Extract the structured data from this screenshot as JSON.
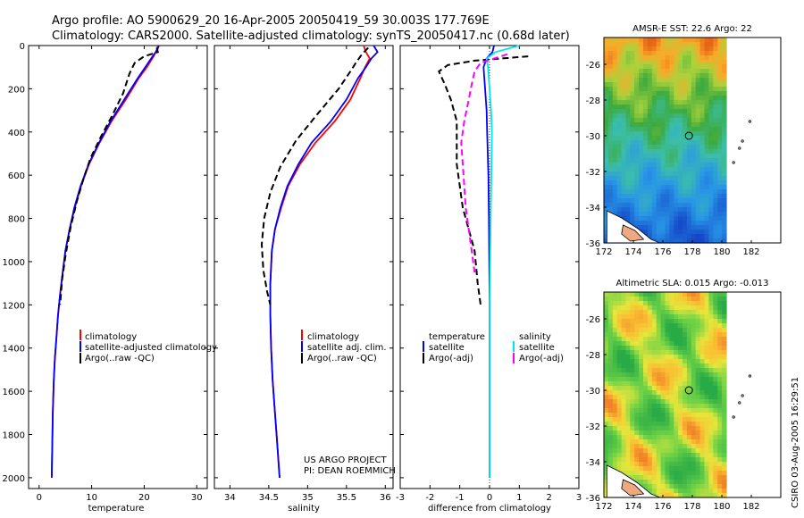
{
  "title_line1": "Argo profile: AO 5900629_20 16-Apr-2005 20050419_59 30.003S 177.769E",
  "title_line2": "Climatology: CARS2000. Satellite-adjusted climatology: synTS_20050417.nc (0.68d later)",
  "project_line1": "US ARGO PROJECT",
  "project_line2": "PI: DEAN ROEMMICH",
  "side_stamp": "CSIRO 03-Aug-2005 16:29:51",
  "colors": {
    "climatology": "#ff0000",
    "satellite": "#0000ff",
    "argo": "#000000",
    "sat_salinity": "#00e5ee",
    "argo_salinity": "#ff00ff"
  },
  "chart_data": [
    {
      "type": "line",
      "xlabel": "temperature",
      "ylabel": "",
      "xlim": [
        -2,
        32
      ],
      "ylim": [
        2050,
        0
      ],
      "xticks": [
        0,
        10,
        20,
        30
      ],
      "yticks": [
        0,
        200,
        400,
        600,
        800,
        1000,
        1200,
        1400,
        1600,
        1800,
        2000
      ],
      "legend": [
        "climatology",
        "satellite-adjusted climatology",
        "Argo(..raw -QC)"
      ],
      "series": [
        {
          "name": "climatology",
          "color": "red",
          "style": "solid",
          "x": [
            22.6,
            22.4,
            21.8,
            20.5,
            19.0,
            16.5,
            13.8,
            11.5,
            9.5,
            8.0,
            6.8,
            5.8,
            5.0,
            4.5,
            4.0,
            3.6,
            3.3,
            3.0,
            2.8,
            2.6,
            2.5,
            2.4
          ],
          "y": [
            0,
            20,
            50,
            100,
            150,
            250,
            350,
            450,
            550,
            650,
            750,
            850,
            950,
            1050,
            1150,
            1250,
            1350,
            1450,
            1550,
            1700,
            1850,
            2000
          ]
        },
        {
          "name": "satellite-adjusted climatology",
          "color": "blue",
          "style": "solid",
          "x": [
            22.8,
            22.5,
            21.6,
            20.2,
            18.8,
            16.2,
            13.6,
            11.4,
            9.4,
            7.9,
            6.7,
            5.8,
            5.0,
            4.5,
            4.0,
            3.6,
            3.3,
            3.0,
            2.8,
            2.6,
            2.5,
            2.4
          ],
          "y": [
            0,
            20,
            50,
            100,
            150,
            250,
            350,
            450,
            550,
            650,
            750,
            850,
            950,
            1050,
            1150,
            1250,
            1350,
            1450,
            1550,
            1700,
            1850,
            2000
          ]
        },
        {
          "name": "Argo(..raw -QC)",
          "color": "black",
          "style": "dashed",
          "x": [
            22.4,
            22.6,
            20.0,
            18.2,
            17.2,
            16.0,
            14.0,
            11.8,
            9.8,
            8.4,
            7.2,
            6.0,
            5.1,
            4.4,
            4.0
          ],
          "y": [
            10,
            30,
            50,
            80,
            130,
            220,
            320,
            420,
            520,
            620,
            720,
            840,
            960,
            1080,
            1200
          ]
        }
      ]
    },
    {
      "type": "line",
      "xlabel": "salinity",
      "ylabel": "",
      "xlim": [
        33.8,
        36.1
      ],
      "ylim": [
        2050,
        0
      ],
      "xticks": [
        34,
        34.5,
        35,
        35.5,
        36
      ],
      "legend": [
        "climatology",
        "satellite adj. clim.",
        "Argo(..raw -QC)"
      ],
      "series": [
        {
          "name": "climatology",
          "color": "red",
          "style": "solid",
          "x": [
            35.72,
            35.75,
            35.8,
            35.74,
            35.68,
            35.55,
            35.35,
            35.1,
            34.9,
            34.75,
            34.66,
            34.58,
            34.54,
            34.52,
            34.52,
            34.53,
            34.55,
            34.58,
            34.6,
            34.62,
            34.64
          ],
          "y": [
            0,
            30,
            60,
            100,
            150,
            250,
            350,
            450,
            550,
            650,
            750,
            850,
            950,
            1100,
            1250,
            1400,
            1550,
            1700,
            1800,
            1900,
            2000
          ]
        },
        {
          "name": "satellite adj. clim.",
          "color": "blue",
          "style": "solid",
          "x": [
            35.85,
            35.9,
            35.82,
            35.75,
            35.65,
            35.5,
            35.3,
            35.05,
            34.88,
            34.74,
            34.65,
            34.58,
            34.54,
            34.52,
            34.52,
            34.53,
            34.55,
            34.58,
            34.6,
            34.62,
            34.64
          ],
          "y": [
            0,
            30,
            60,
            100,
            150,
            250,
            350,
            450,
            550,
            650,
            750,
            850,
            950,
            1100,
            1250,
            1400,
            1550,
            1700,
            1800,
            1900,
            2000
          ]
        },
        {
          "name": "Argo(..raw -QC)",
          "color": "black",
          "style": "dashed",
          "x": [
            35.78,
            35.7,
            35.62,
            35.55,
            35.4,
            35.12,
            34.85,
            34.65,
            34.52,
            34.44,
            34.41,
            34.43,
            34.48,
            34.52
          ],
          "y": [
            10,
            40,
            80,
            120,
            200,
            320,
            440,
            560,
            680,
            800,
            920,
            1040,
            1140,
            1200
          ]
        }
      ]
    },
    {
      "type": "line",
      "xlabel": "difference from climatology",
      "ylabel": "",
      "xlim": [
        -3,
        3
      ],
      "ylim": [
        2050,
        0
      ],
      "xticks": [
        -3,
        -2,
        -1,
        0,
        1,
        2,
        3
      ],
      "legend": [
        "temperature",
        "satellite",
        "Argo(-adj)",
        "salinity",
        "satellite",
        "Argo(-adj)"
      ],
      "series": [
        {
          "name": "temperature satellite",
          "color": "blue",
          "style": "solid",
          "x": [
            0.15,
            0.1,
            -0.1,
            -0.2,
            -0.15,
            -0.1,
            -0.08,
            -0.06,
            -0.04,
            -0.03,
            -0.02,
            -0.01,
            0.0,
            0.0,
            0.0
          ],
          "y": [
            0,
            30,
            60,
            100,
            200,
            300,
            400,
            500,
            600,
            700,
            800,
            1000,
            1200,
            1600,
            2000
          ]
        },
        {
          "name": "temperature Argo(-adj)",
          "color": "black",
          "style": "dashed",
          "x": [
            1.3,
            -0.5,
            -1.4,
            -1.7,
            -1.5,
            -1.3,
            -1.1,
            -1.1,
            -1.1,
            -1.0,
            -0.9,
            -0.7,
            -0.5,
            -0.4,
            -0.3
          ],
          "y": [
            50,
            70,
            90,
            120,
            180,
            250,
            350,
            450,
            550,
            650,
            750,
            850,
            950,
            1100,
            1200
          ]
        },
        {
          "name": "salinity satellite",
          "color": "cyan",
          "style": "solid",
          "x": [
            1.0,
            0.2,
            -0.1,
            -0.05,
            0.0,
            0.05,
            0.08,
            0.06,
            0.04,
            0.02,
            0.0,
            0.0,
            0.0,
            0.0
          ],
          "y": [
            0,
            30,
            60,
            100,
            200,
            300,
            400,
            600,
            800,
            1000,
            1200,
            1400,
            1700,
            2000
          ]
        },
        {
          "name": "salinity Argo(-adj)",
          "color": "magenta",
          "style": "dashed",
          "x": [
            0.6,
            -0.3,
            -0.5,
            -0.6,
            -0.7,
            -0.85,
            -0.95,
            -0.9,
            -0.85,
            -0.8,
            -0.7,
            -0.6,
            -0.5
          ],
          "y": [
            40,
            80,
            120,
            180,
            250,
            350,
            450,
            550,
            650,
            750,
            850,
            950,
            1050
          ]
        }
      ]
    },
    {
      "type": "heatmap",
      "title": "AMSR-E SST: 22.6 Argo: 22",
      "xlim": [
        172,
        184
      ],
      "ylim": [
        -36,
        -24.5
      ],
      "xticks": [
        172,
        174,
        176,
        178,
        180,
        182
      ],
      "yticks": [
        -26,
        -28,
        -30,
        -32,
        -34,
        -36
      ],
      "float_position": [
        177.77,
        -30.0
      ]
    },
    {
      "type": "heatmap",
      "title": "Altimetric SLA: 0.015 Argo: -0.013",
      "xlim": [
        172,
        184
      ],
      "ylim": [
        -36,
        -24.5
      ],
      "xticks": [
        172,
        174,
        176,
        178,
        180,
        182
      ],
      "yticks": [
        -26,
        -28,
        -30,
        -32,
        -34,
        -36
      ],
      "float_position": [
        177.77,
        -30.0
      ]
    }
  ]
}
